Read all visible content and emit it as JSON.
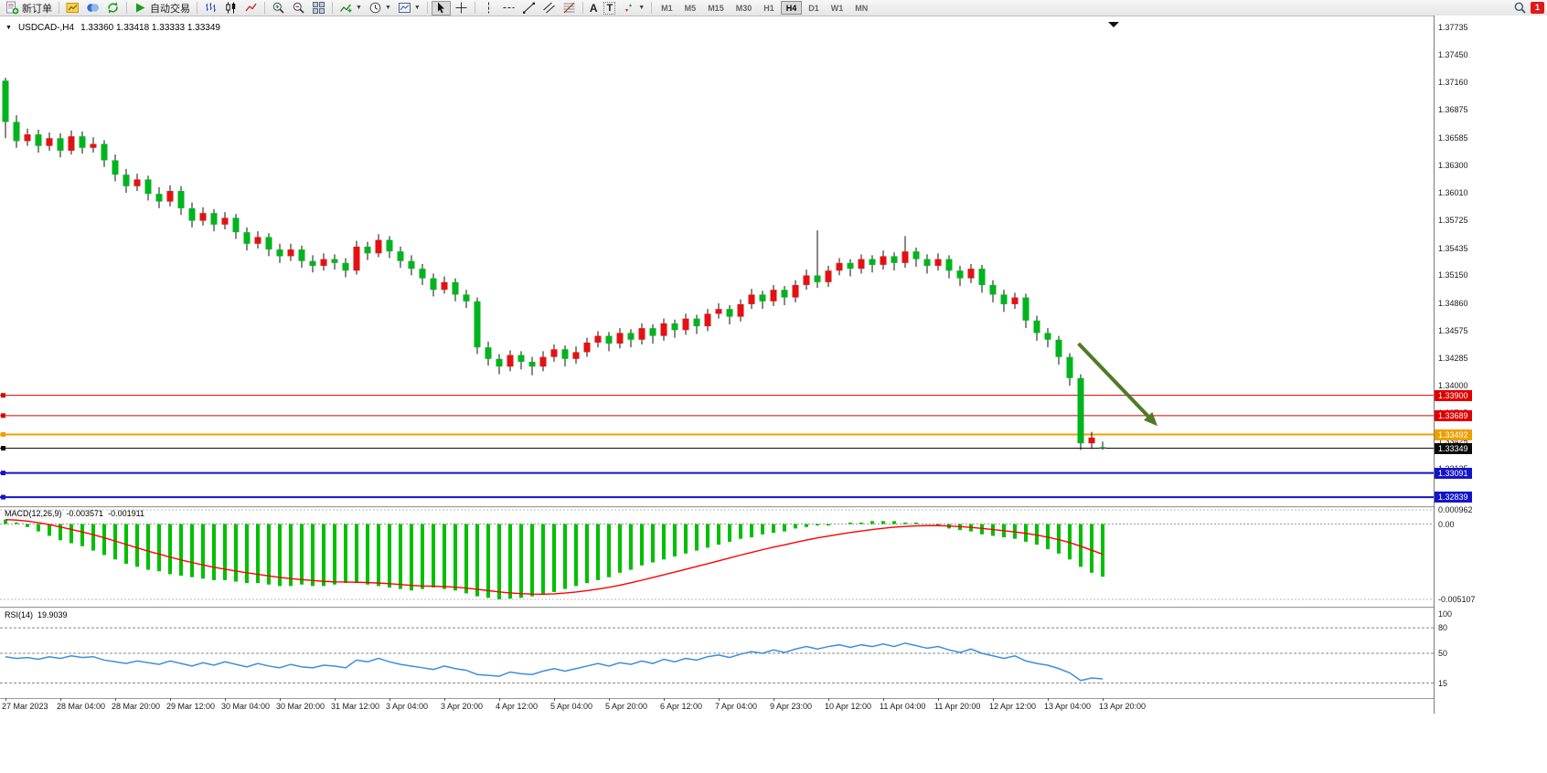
{
  "toolbar": {
    "new_order_label": "新订单",
    "autotrading_label": "自动交易",
    "text_tool_label": "A",
    "textlabel_tool_label": "T",
    "timeframes": [
      "M1",
      "M5",
      "M15",
      "M30",
      "H1",
      "H4",
      "D1",
      "W1",
      "MN"
    ],
    "active_timeframe": "H4",
    "notification_count": "1"
  },
  "chart_data": {
    "type": "candlestick+indicators",
    "symbol_period": "USDCAD-,H4",
    "ohlc_text": "1.33360 1.33418 1.33333 1.33349",
    "last_candle": {
      "open": "1.33360",
      "high": "1.33418",
      "low": "1.33333",
      "close": "1.33349"
    },
    "colors": {
      "up": "#e31212",
      "down": "#00b41e",
      "wick": "#111111",
      "macd_hist": "#00c000",
      "macd_signal": "#ff0000",
      "rsi_line": "#3e8ede",
      "arrow": "#4f7b28"
    },
    "price_axis_ticks": [
      "1.37735",
      "1.37450",
      "1.37160",
      "1.36875",
      "1.36585",
      "1.36300",
      "1.36010",
      "1.35725",
      "1.35435",
      "1.35150",
      "1.34860",
      "1.34575",
      "1.34285",
      "1.34000",
      "1.33715",
      "1.33425",
      "1.33135",
      "1.32845"
    ],
    "hlines": [
      {
        "price": 1.339,
        "label": "1.33900",
        "color": "#e00000",
        "width": 1
      },
      {
        "price": 1.33689,
        "label": "1.33689",
        "color": "#e00000",
        "width": 1
      },
      {
        "price": 1.33492,
        "label": "1.33492",
        "color": "#eea000",
        "width": 2
      },
      {
        "price": 1.33349,
        "label": "1.33349",
        "color": "#0a0a0a",
        "width": 1
      },
      {
        "price": 1.33091,
        "label": "1.33091",
        "color": "#1414c8",
        "width": 2
      },
      {
        "price": 1.32839,
        "label": "1.32839",
        "color": "#1414c8",
        "width": 2
      }
    ],
    "time_labels": [
      "27 Mar 2023",
      "28 Mar 04:00",
      "28 Mar 20:00",
      "29 Mar 12:00",
      "30 Mar 04:00",
      "30 Mar 20:00",
      "31 Mar 12:00",
      "3 Apr 04:00",
      "3 Apr 20:00",
      "4 Apr 12:00",
      "5 Apr 04:00",
      "5 Apr 20:00",
      "6 Apr 12:00",
      "7 Apr 04:00",
      "9 Apr 23:00",
      "10 Apr 12:00",
      "11 Apr 04:00",
      "11 Apr 20:00",
      "12 Apr 12:00",
      "13 Apr 04:00",
      "13 Apr 20:00"
    ],
    "time_label_every": 5,
    "candles": [
      [
        1.3718,
        1.3721,
        1.3658,
        1.3675
      ],
      [
        1.3675,
        1.3682,
        1.3648,
        1.3655
      ],
      [
        1.3655,
        1.3668,
        1.365,
        1.3662
      ],
      [
        1.3662,
        1.3667,
        1.3643,
        1.365
      ],
      [
        1.365,
        1.3664,
        1.3645,
        1.3658
      ],
      [
        1.3658,
        1.3663,
        1.3638,
        1.3645
      ],
      [
        1.3645,
        1.3666,
        1.3641,
        1.366
      ],
      [
        1.366,
        1.3665,
        1.3642,
        1.3648
      ],
      [
        1.3648,
        1.3659,
        1.3643,
        1.3652
      ],
      [
        1.3652,
        1.3656,
        1.3628,
        1.3635
      ],
      [
        1.3635,
        1.3641,
        1.3613,
        1.362
      ],
      [
        1.362,
        1.3626,
        1.3601,
        1.3608
      ],
      [
        1.3608,
        1.3621,
        1.3603,
        1.3615
      ],
      [
        1.3615,
        1.3619,
        1.3593,
        1.36
      ],
      [
        1.36,
        1.3607,
        1.3585,
        1.3592
      ],
      [
        1.3592,
        1.3609,
        1.3587,
        1.3603
      ],
      [
        1.3603,
        1.3608,
        1.3578,
        1.3585
      ],
      [
        1.3585,
        1.3591,
        1.3565,
        1.3572
      ],
      [
        1.3572,
        1.3586,
        1.3567,
        1.358
      ],
      [
        1.358,
        1.3584,
        1.3561,
        1.3568
      ],
      [
        1.3568,
        1.3581,
        1.3563,
        1.3575
      ],
      [
        1.3575,
        1.3579,
        1.3553,
        1.356
      ],
      [
        1.356,
        1.3565,
        1.3541,
        1.3548
      ],
      [
        1.3548,
        1.3561,
        1.3543,
        1.3555
      ],
      [
        1.3555,
        1.3559,
        1.3535,
        1.3542
      ],
      [
        1.3542,
        1.3548,
        1.3528,
        1.3535
      ],
      [
        1.3535,
        1.3548,
        1.353,
        1.3542
      ],
      [
        1.3542,
        1.3546,
        1.3523,
        1.353
      ],
      [
        1.353,
        1.3536,
        1.3518,
        1.3525
      ],
      [
        1.3525,
        1.3538,
        1.352,
        1.3532
      ],
      [
        1.3532,
        1.3537,
        1.3521,
        1.3528
      ],
      [
        1.3528,
        1.3533,
        1.3513,
        1.352
      ],
      [
        1.352,
        1.3551,
        1.3516,
        1.3545
      ],
      [
        1.3545,
        1.355,
        1.3531,
        1.3538
      ],
      [
        1.3538,
        1.3558,
        1.3534,
        1.3552
      ],
      [
        1.3552,
        1.3556,
        1.3533,
        1.354
      ],
      [
        1.354,
        1.3545,
        1.3523,
        1.353
      ],
      [
        1.353,
        1.3536,
        1.3515,
        1.3522
      ],
      [
        1.3522,
        1.3527,
        1.3505,
        1.3512
      ],
      [
        1.3512,
        1.3517,
        1.3493,
        1.35
      ],
      [
        1.35,
        1.3514,
        1.3496,
        1.3508
      ],
      [
        1.3508,
        1.3512,
        1.3488,
        1.3495
      ],
      [
        1.3495,
        1.35,
        1.3481,
        1.3488
      ],
      [
        1.3488,
        1.3492,
        1.3433,
        1.344
      ],
      [
        1.344,
        1.3446,
        1.3421,
        1.3428
      ],
      [
        1.3428,
        1.3433,
        1.3412,
        1.342
      ],
      [
        1.342,
        1.3437,
        1.3415,
        1.3432
      ],
      [
        1.3432,
        1.3436,
        1.3417,
        1.3425
      ],
      [
        1.3425,
        1.343,
        1.3411,
        1.342
      ],
      [
        1.342,
        1.3436,
        1.3415,
        1.343
      ],
      [
        1.343,
        1.3443,
        1.3425,
        1.3438
      ],
      [
        1.3438,
        1.3442,
        1.342,
        1.3428
      ],
      [
        1.3428,
        1.3441,
        1.3423,
        1.3435
      ],
      [
        1.3435,
        1.345,
        1.343,
        1.3445
      ],
      [
        1.3445,
        1.3457,
        1.344,
        1.3452
      ],
      [
        1.3452,
        1.3456,
        1.3436,
        1.3444
      ],
      [
        1.3444,
        1.346,
        1.3439,
        1.3455
      ],
      [
        1.3455,
        1.3459,
        1.344,
        1.3448
      ],
      [
        1.3448,
        1.3465,
        1.3443,
        1.346
      ],
      [
        1.346,
        1.3464,
        1.3444,
        1.3452
      ],
      [
        1.3452,
        1.347,
        1.3447,
        1.3465
      ],
      [
        1.3465,
        1.3469,
        1.345,
        1.3458
      ],
      [
        1.3458,
        1.3475,
        1.3453,
        1.347
      ],
      [
        1.347,
        1.3474,
        1.3454,
        1.3462
      ],
      [
        1.3462,
        1.348,
        1.3457,
        1.3475
      ],
      [
        1.3475,
        1.3486,
        1.347,
        1.348
      ],
      [
        1.348,
        1.3484,
        1.3464,
        1.3472
      ],
      [
        1.3472,
        1.349,
        1.3467,
        1.3485
      ],
      [
        1.3485,
        1.3501,
        1.348,
        1.3495
      ],
      [
        1.3495,
        1.3499,
        1.348,
        1.3488
      ],
      [
        1.3488,
        1.3505,
        1.3483,
        1.35
      ],
      [
        1.35,
        1.3504,
        1.3484,
        1.3492
      ],
      [
        1.3492,
        1.351,
        1.3487,
        1.3505
      ],
      [
        1.3505,
        1.3521,
        1.35,
        1.3515
      ],
      [
        1.3515,
        1.3562,
        1.3502,
        1.3508
      ],
      [
        1.3508,
        1.3525,
        1.3503,
        1.352
      ],
      [
        1.352,
        1.3533,
        1.3515,
        1.3528
      ],
      [
        1.3528,
        1.3532,
        1.3514,
        1.3522
      ],
      [
        1.3522,
        1.3537,
        1.3517,
        1.3532
      ],
      [
        1.3532,
        1.3536,
        1.3518,
        1.3526
      ],
      [
        1.3526,
        1.3541,
        1.3521,
        1.3535
      ],
      [
        1.3535,
        1.3539,
        1.352,
        1.3528
      ],
      [
        1.3528,
        1.3556,
        1.3523,
        1.354
      ],
      [
        1.354,
        1.3544,
        1.3524,
        1.3532
      ],
      [
        1.3532,
        1.3537,
        1.3517,
        1.3525
      ],
      [
        1.3525,
        1.3538,
        1.352,
        1.3532
      ],
      [
        1.3532,
        1.3536,
        1.3512,
        1.352
      ],
      [
        1.352,
        1.3525,
        1.3504,
        1.3512
      ],
      [
        1.3512,
        1.3527,
        1.3507,
        1.3522
      ],
      [
        1.3522,
        1.3526,
        1.3497,
        1.3505
      ],
      [
        1.3505,
        1.351,
        1.3487,
        1.3495
      ],
      [
        1.3495,
        1.35,
        1.3477,
        1.3485
      ],
      [
        1.3485,
        1.3497,
        1.348,
        1.3492
      ],
      [
        1.3492,
        1.3496,
        1.346,
        1.3468
      ],
      [
        1.3468,
        1.3473,
        1.3447,
        1.3455
      ],
      [
        1.3455,
        1.346,
        1.344,
        1.3448
      ],
      [
        1.3448,
        1.3452,
        1.3422,
        1.343
      ],
      [
        1.343,
        1.3434,
        1.34,
        1.3408
      ],
      [
        1.3408,
        1.3412,
        1.3333,
        1.334
      ],
      [
        1.334,
        1.3352,
        1.3334,
        1.3346
      ],
      [
        1.3336,
        1.33418,
        1.33333,
        1.33349
      ]
    ],
    "macd": {
      "label": "MACD(12,26,9)",
      "main_value": "-0.003571",
      "signal_value": "-0.001911",
      "axis": [
        {
          "v": 0.000962,
          "label": "0.000962"
        },
        {
          "v": 0,
          "label": "0.00"
        },
        {
          "v": -0.005107,
          "label": "-0.005107"
        }
      ],
      "max": 0.000962,
      "min": -0.005107,
      "values": [
        0.0003,
        0.0001,
        -0.0002,
        -0.0005,
        -0.0008,
        -0.0011,
        -0.0013,
        -0.0015,
        -0.0018,
        -0.0021,
        -0.0024,
        -0.0027,
        -0.0029,
        -0.0031,
        -0.0032,
        -0.0034,
        -0.0035,
        -0.0036,
        -0.0037,
        -0.0038,
        -0.0038,
        -0.0039,
        -0.004,
        -0.004,
        -0.0041,
        -0.0042,
        -0.0042,
        -0.0041,
        -0.0042,
        -0.0042,
        -0.0041,
        -0.004,
        -0.004,
        -0.0041,
        -0.0042,
        -0.0043,
        -0.0044,
        -0.0045,
        -0.0044,
        -0.0043,
        -0.0044,
        -0.0045,
        -0.0047,
        -0.0049,
        -0.005,
        -0.0051,
        -0.00505,
        -0.005,
        -0.0049,
        -0.0048,
        -0.0046,
        -0.0044,
        -0.0042,
        -0.004,
        -0.0038,
        -0.0036,
        -0.0033,
        -0.0031,
        -0.0028,
        -0.0026,
        -0.0024,
        -0.0022,
        -0.002,
        -0.0018,
        -0.0016,
        -0.0014,
        -0.0012,
        -0.001,
        -0.0009,
        -0.0007,
        -0.0006,
        -0.0005,
        -0.0003,
        -0.0002,
        -0.0001,
        -0.0001,
        0.0,
        0.0001,
        0.0001,
        0.0002,
        0.0002,
        0.0002,
        0.0001,
        0.0001,
        0.0,
        -0.0001,
        -0.0003,
        -0.0004,
        -0.0005,
        -0.0007,
        -0.0008,
        -0.0009,
        -0.001,
        -0.0012,
        -0.0014,
        -0.0017,
        -0.002,
        -0.0024,
        -0.0029,
        -0.0033,
        -0.003571
      ]
    },
    "rsi": {
      "label": "RSI(14)",
      "value": "19.9039",
      "axis": [
        {
          "v": 100,
          "label": "100"
        },
        {
          "v": 80,
          "label": "80"
        },
        {
          "v": 50,
          "label": "50"
        },
        {
          "v": 15,
          "label": "15"
        }
      ],
      "levels": [
        80,
        50,
        15
      ],
      "values": [
        46,
        44,
        45,
        43,
        46,
        44,
        47,
        45,
        46,
        42,
        40,
        38,
        41,
        39,
        37,
        41,
        38,
        35,
        39,
        36,
        40,
        37,
        34,
        38,
        35,
        33,
        37,
        34,
        33,
        36,
        35,
        33,
        42,
        40,
        44,
        40,
        37,
        35,
        33,
        31,
        35,
        32,
        30,
        25,
        24,
        23,
        28,
        26,
        25,
        29,
        32,
        29,
        32,
        35,
        38,
        35,
        39,
        37,
        41,
        38,
        43,
        40,
        44,
        42,
        46,
        48,
        45,
        49,
        52,
        50,
        54,
        51,
        55,
        58,
        55,
        58,
        60,
        57,
        60,
        58,
        61,
        58,
        62,
        59,
        56,
        58,
        54,
        51,
        55,
        50,
        47,
        44,
        47,
        41,
        38,
        36,
        32,
        27,
        18,
        21,
        19.9
      ]
    },
    "arrow": {
      "from_candle": 97.8,
      "from_price": 1.3444,
      "to_candle": 105,
      "to_price": 1.3358
    },
    "shift_marker_candle": 101
  }
}
